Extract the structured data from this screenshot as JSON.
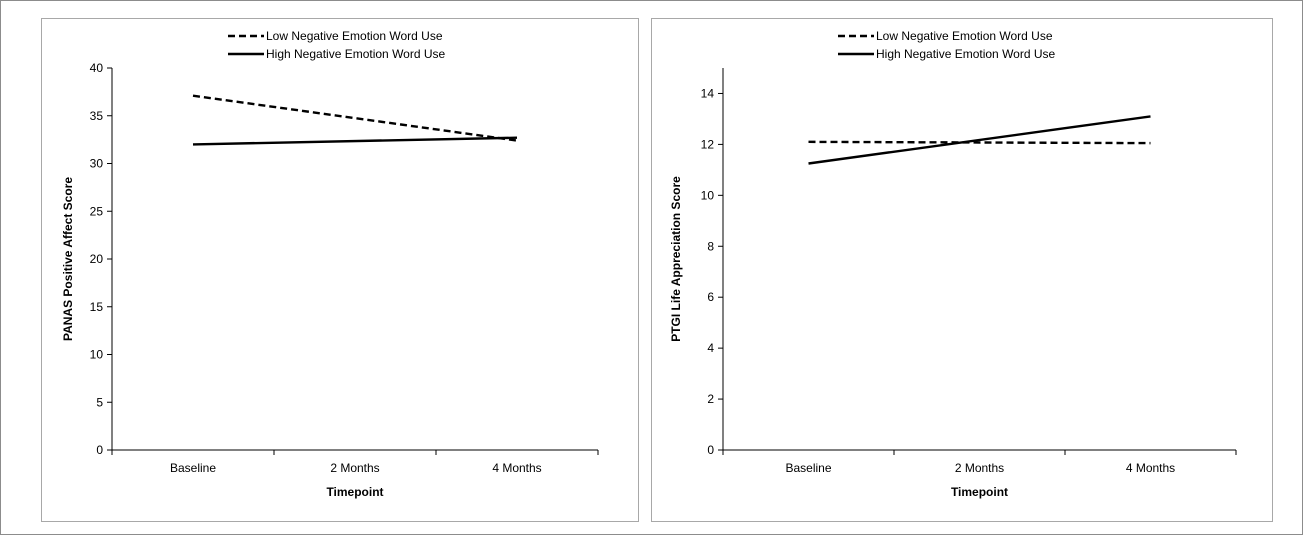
{
  "chart_data": [
    {
      "type": "line",
      "categories": [
        "Baseline",
        "2 Months",
        "4 Months"
      ],
      "series": [
        {
          "name": "Low Negative Emotion Word Use",
          "style": "dashed",
          "values": [
            37.1,
            null,
            32.4
          ]
        },
        {
          "name": "High Negative Emotion Word Use",
          "style": "solid",
          "values": [
            32.0,
            null,
            32.7
          ]
        }
      ],
      "xlabel": "Timepoint",
      "ylabel": "PANAS Positive Affect Score",
      "ylim": [
        0,
        40
      ],
      "yticks": [
        0,
        5,
        10,
        15,
        20,
        25,
        30,
        35,
        40
      ],
      "grid": false,
      "legend_position": "top-center",
      "line_color": "#000000"
    },
    {
      "type": "line",
      "categories": [
        "Baseline",
        "2 Months",
        "4 Months"
      ],
      "series": [
        {
          "name": "Low Negative Emotion Word Use",
          "style": "dashed",
          "values": [
            12.1,
            null,
            12.05
          ]
        },
        {
          "name": "High Negative Emotion Word Use",
          "style": "solid",
          "values": [
            11.25,
            null,
            13.1
          ]
        }
      ],
      "xlabel": "Timepoint",
      "ylabel": "PTGI Life Appreciation Score",
      "ylim": [
        0,
        15
      ],
      "yticks": [
        0,
        2,
        4,
        6,
        8,
        10,
        12,
        14
      ],
      "grid": false,
      "legend_position": "top-center",
      "line_color": "#000000"
    }
  ]
}
